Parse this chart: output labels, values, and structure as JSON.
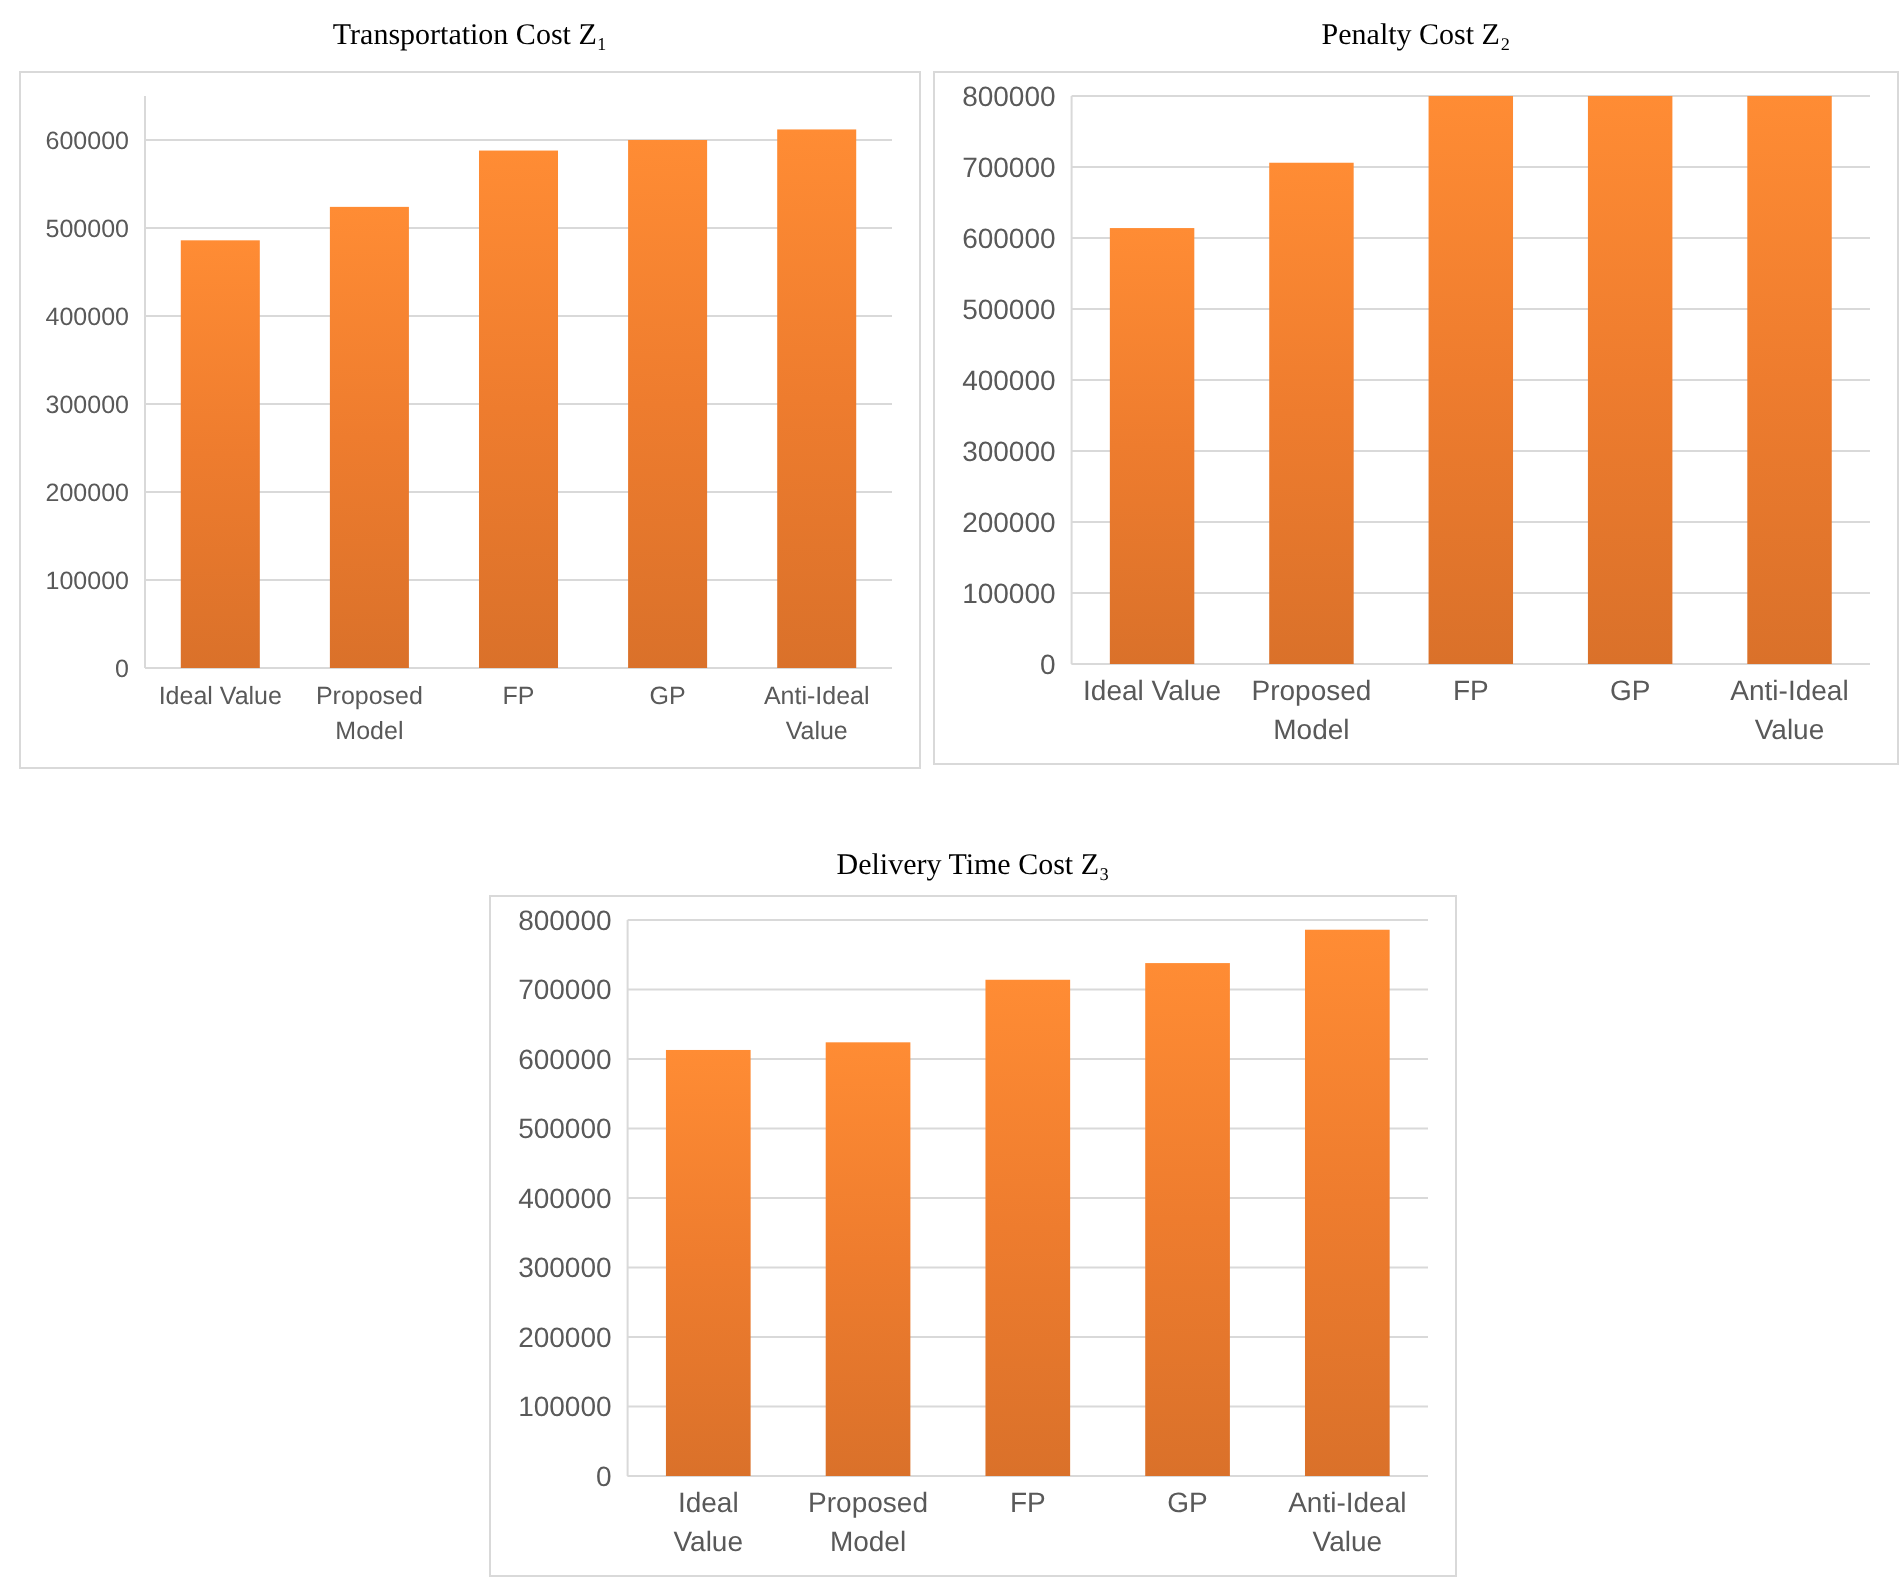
{
  "chart_data": [
    {
      "type": "bar",
      "title": "Transportation Cost Z₁",
      "categories": [
        "Ideal Value",
        "Proposed Model",
        "FP",
        "GP",
        "Anti-Ideal Value"
      ],
      "values": [
        486000,
        524000,
        588000,
        600000,
        612000
      ],
      "color": "#ee7c2e",
      "ylim": [
        0,
        650000
      ],
      "yticks": [
        0,
        100000,
        200000,
        300000,
        400000,
        500000,
        600000
      ],
      "grid": "y"
    },
    {
      "type": "bar",
      "title": "Penalty Cost Z₂",
      "categories": [
        "Ideal Value",
        "Proposed Model",
        "FP",
        "GP",
        "Anti-Ideal Value"
      ],
      "values": [
        614000,
        706000,
        800000,
        800000,
        800000
      ],
      "color": "#ee7c2e",
      "ylim": [
        0,
        800000
      ],
      "yticks": [
        0,
        100000,
        200000,
        300000,
        400000,
        500000,
        600000,
        700000,
        800000
      ],
      "grid": "y"
    },
    {
      "type": "bar",
      "title": "Delivery Time Cost Z₃",
      "categories": [
        "Ideal Value",
        "Proposed Model",
        "FP",
        "GP",
        "Anti-Ideal Value"
      ],
      "values": [
        613000,
        624000,
        714000,
        738000,
        786000
      ],
      "color": "#ee7c2e",
      "ylim": [
        0,
        800000
      ],
      "yticks": [
        0,
        100000,
        200000,
        300000,
        400000,
        500000,
        600000,
        700000,
        800000
      ],
      "grid": "y"
    }
  ]
}
